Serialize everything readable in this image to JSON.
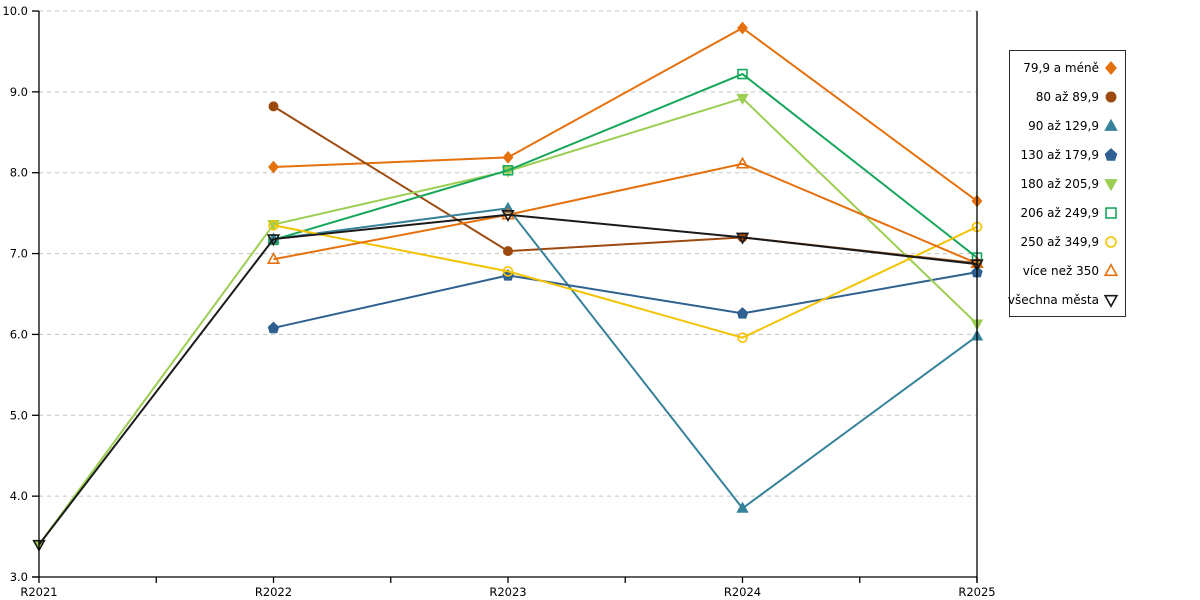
{
  "page": {
    "background": "#ffffff"
  },
  "chart_data": {
    "type": "line",
    "title": "",
    "xlabel": "",
    "ylabel": "",
    "x": [
      "R2021",
      "R2022",
      "R2023",
      "R2024",
      "R2025"
    ],
    "ylim": [
      3.0,
      10.0
    ],
    "y_tick_labels": [
      "3.0",
      "4.0",
      "5.0",
      "6.0",
      "7.0",
      "8.0",
      "9.0",
      "10.0"
    ],
    "y_tick_values": [
      3,
      4,
      5,
      6,
      7,
      8,
      9,
      10
    ],
    "grid": "horizontal-dashed",
    "grid_color": "#c3c3c3",
    "axis_color": "#000000",
    "legend_position": "right-outside",
    "series": [
      {
        "name": "79,9 a méně",
        "color": "#e5710e",
        "marker": "diamond",
        "fill": "filled",
        "values": [
          null,
          8.07,
          8.19,
          9.79,
          7.65
        ]
      },
      {
        "name": "80 až 89,9",
        "color": "#9c4a0f",
        "marker": "circle",
        "fill": "filled",
        "values": [
          null,
          8.82,
          7.03,
          7.2,
          6.88
        ]
      },
      {
        "name": "90 až 129,9",
        "color": "#36829b",
        "marker": "triangle-up",
        "fill": "filled",
        "values": [
          null,
          7.18,
          7.56,
          3.85,
          5.98
        ]
      },
      {
        "name": "130 až 179,9",
        "color": "#2f608f",
        "marker": "pentagon",
        "fill": "filled",
        "values": [
          null,
          6.08,
          6.73,
          6.26,
          6.77
        ]
      },
      {
        "name": "180 až 205,9",
        "color": "#9bce52",
        "marker": "triangle-down",
        "fill": "filled",
        "values": [
          3.4,
          7.36,
          8.02,
          8.92,
          6.13
        ]
      },
      {
        "name": "206 až 249,9",
        "color": "#17a75c",
        "marker": "square",
        "fill": "open",
        "values": [
          null,
          7.17,
          8.03,
          9.22,
          6.95
        ]
      },
      {
        "name": "250 až 349,9",
        "color": "#f3c301",
        "marker": "circle",
        "fill": "open",
        "values": [
          null,
          7.35,
          6.78,
          5.96,
          7.33
        ]
      },
      {
        "name": "více než 350",
        "color": "#e5710e",
        "marker": "triangle-up",
        "fill": "open",
        "values": [
          null,
          6.93,
          7.48,
          8.11,
          6.88
        ]
      },
      {
        "name": "všechna města",
        "color": "#1a1a1a",
        "marker": "triangle-down",
        "fill": "open",
        "values": [
          3.4,
          7.18,
          7.48,
          7.2,
          6.87
        ]
      }
    ]
  }
}
